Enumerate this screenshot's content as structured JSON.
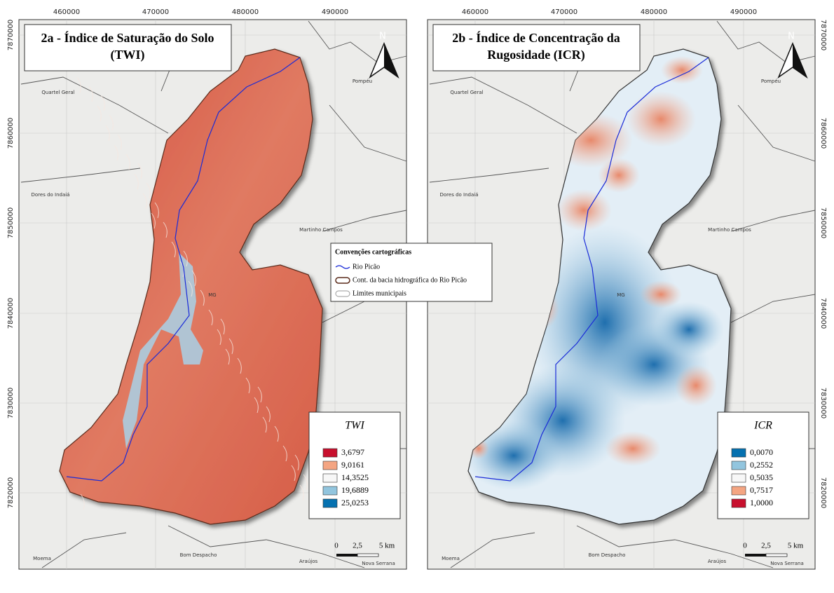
{
  "panels": [
    {
      "title": [
        "2a - Índice de Saturação do Solo",
        "(TWI)"
      ],
      "legend_title": "TWI",
      "legend_items": [
        {
          "label": "3,6797",
          "color": "#c8102e"
        },
        {
          "label": "9,0161",
          "color": "#f4a582"
        },
        {
          "label": "14,3525",
          "color": "#f7f7f7"
        },
        {
          "label": "19,6889",
          "color": "#92c5de"
        },
        {
          "label": "25,0253",
          "color": "#0571b0"
        }
      ]
    },
    {
      "title": [
        "2b - Índice de Concentração da",
        "Rugosidade (ICR)"
      ],
      "legend_title": "ICR",
      "legend_items": [
        {
          "label": "0,0070",
          "color": "#0571b0"
        },
        {
          "label": "0,2552",
          "color": "#92c5de"
        },
        {
          "label": "0,5035",
          "color": "#f7f7f7"
        },
        {
          "label": "0,7517",
          "color": "#f4a582"
        },
        {
          "label": "1,0000",
          "color": "#c8102e"
        }
      ]
    }
  ],
  "x_ticks": [
    "460000",
    "470000",
    "480000",
    "490000"
  ],
  "y_ticks": [
    "7870000",
    "7860000",
    "7850000",
    "7840000",
    "7830000",
    "7820000"
  ],
  "north": "N",
  "places": [
    "Quartel Geral",
    "Dores do Indaiá",
    "Martinho Campos",
    "Pompéu",
    "Moema",
    "Bom Despacho",
    "Araújos",
    "Nova Serrana"
  ],
  "state_label": "MG",
  "scale": [
    "0",
    "2,5",
    "5 km"
  ],
  "conventions": {
    "title": "Convenções cartográficas",
    "items": [
      "Rio Picão",
      "Cont. da bacia hidrográfica do Rio Picão",
      "Limites municipais"
    ]
  }
}
